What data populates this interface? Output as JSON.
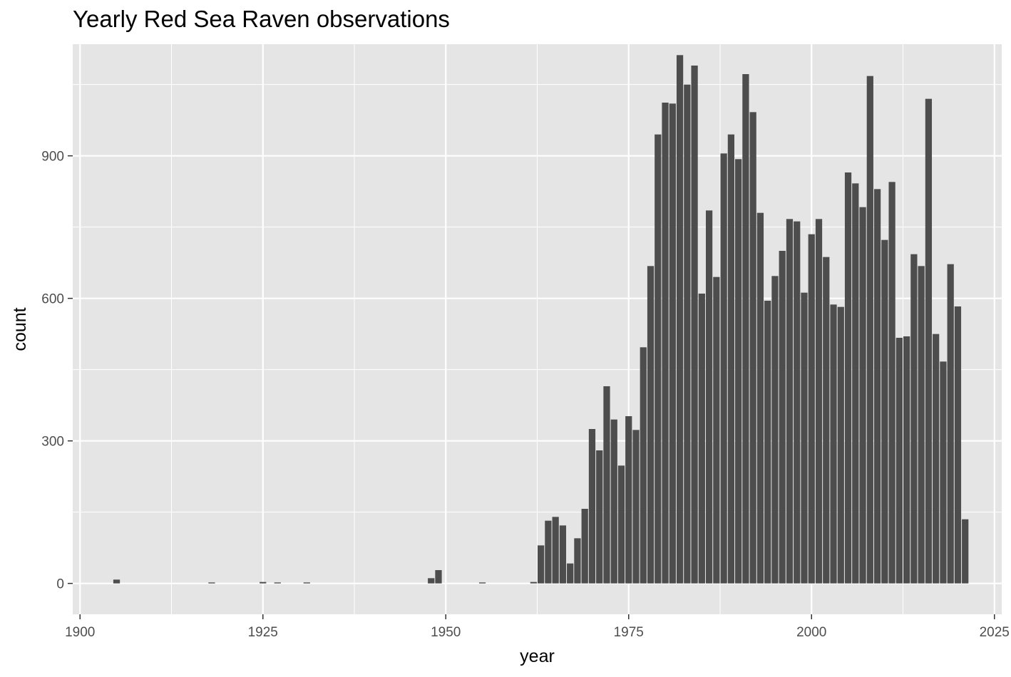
{
  "chart_data": {
    "type": "bar",
    "title": "Yearly Red Sea Raven observations",
    "xlabel": "year",
    "ylabel": "count",
    "xlim": [
      1899,
      2026
    ],
    "ylim": [
      -65,
      1135
    ],
    "x_ticks": [
      1900,
      1925,
      1950,
      1975,
      2000,
      2025
    ],
    "y_ticks": [
      0,
      300,
      600,
      900
    ],
    "grid": true,
    "bar_color": "#4d4d4d",
    "panel_color": "#e5e5e5",
    "grid_color": "#ffffff",
    "x": [
      1905,
      1918,
      1925,
      1927,
      1931,
      1948,
      1949,
      1955,
      1962,
      1963,
      1964,
      1965,
      1966,
      1967,
      1968,
      1969,
      1970,
      1971,
      1972,
      1973,
      1974,
      1975,
      1976,
      1977,
      1978,
      1979,
      1980,
      1981,
      1982,
      1983,
      1984,
      1985,
      1986,
      1987,
      1988,
      1989,
      1990,
      1991,
      1992,
      1993,
      1994,
      1995,
      1996,
      1997,
      1998,
      1999,
      2000,
      2001,
      2002,
      2003,
      2004,
      2005,
      2006,
      2007,
      2008,
      2009,
      2010,
      2011,
      2012,
      2013,
      2014,
      2015,
      2016,
      2017,
      2018,
      2019,
      2020,
      2021
    ],
    "values": [
      8,
      2,
      3,
      2,
      2,
      11,
      28,
      2,
      3,
      80,
      132,
      140,
      122,
      42,
      95,
      157,
      325,
      280,
      415,
      345,
      248,
      352,
      323,
      497,
      668,
      945,
      1012,
      1010,
      1112,
      1050,
      1090,
      610,
      785,
      645,
      905,
      945,
      893,
      1072,
      992,
      780,
      595,
      647,
      700,
      767,
      762,
      612,
      735,
      767,
      687,
      587,
      582,
      865,
      842,
      792,
      1068,
      830,
      723,
      845,
      517,
      520,
      693,
      668,
      1020,
      525,
      467,
      672,
      583,
      135
    ]
  }
}
